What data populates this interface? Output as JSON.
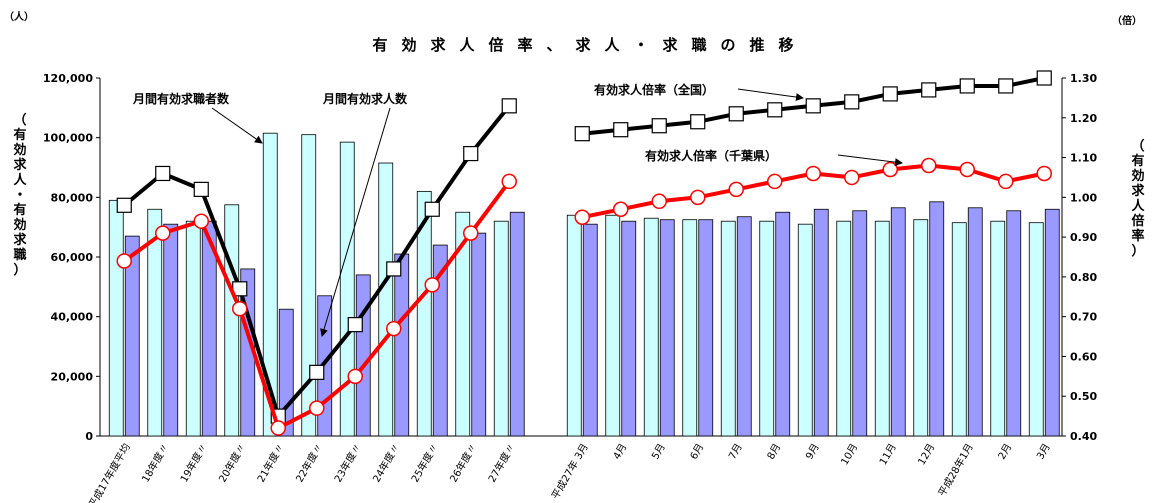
{
  "chart_data": {
    "type": "bar",
    "title": "有効求人倍率、求人・求職の推移",
    "left_unit": "（人）",
    "right_unit": "（倍）",
    "left_axis_label": "（有効求人・有効求職）",
    "right_axis_label": "（有効求人倍率）",
    "left_ylim": [
      0,
      120000
    ],
    "right_ylim": [
      0.4,
      1.3
    ],
    "left_ticks": [
      "0",
      "20,000",
      "40,000",
      "60,000",
      "80,000",
      "100,000",
      "120,000"
    ],
    "right_ticks": [
      "0.40",
      "0.50",
      "0.60",
      "0.70",
      "0.80",
      "0.90",
      "1.00",
      "1.10",
      "1.20",
      "1.30"
    ],
    "categories_group1": [
      "平成17年度平均",
      "18年度〃",
      "19年度〃",
      "20年度〃",
      "21年度〃",
      "22年度〃",
      "23年度〃",
      "24年度〃",
      "25年度〃",
      "26年度〃",
      "27年度〃"
    ],
    "categories_group2": [
      "平成27年 3月",
      "4月",
      "5月",
      "6月",
      "7月",
      "8月",
      "9月",
      "10月",
      "11月",
      "12月",
      "平成28年1月",
      "2月",
      "3月"
    ],
    "series": [
      {
        "name": "月間有効求職者数",
        "kind": "bar",
        "color": "#ccffff",
        "group1": [
          79000,
          76000,
          72000,
          77500,
          101500,
          101000,
          98500,
          91500,
          82000,
          75000,
          72000
        ],
        "group2": [
          74000,
          74000,
          73000,
          72500,
          72000,
          72000,
          71000,
          72000,
          72000,
          72500,
          71500,
          72000,
          71500
        ]
      },
      {
        "name": "月間有効求人数",
        "kind": "bar",
        "color": "#9999ff",
        "group1": [
          67000,
          71000,
          72000,
          56000,
          42500,
          47000,
          54000,
          61000,
          64000,
          68000,
          75000
        ],
        "group2": [
          71000,
          72000,
          72500,
          72500,
          73500,
          75000,
          76000,
          75500,
          76500,
          78500,
          76500,
          75500,
          76000
        ]
      },
      {
        "name": "有効求人倍率（全国）",
        "kind": "line",
        "color": "#000000",
        "group1": [
          0.98,
          1.06,
          1.02,
          0.77,
          0.45,
          0.56,
          0.68,
          0.82,
          0.97,
          1.11,
          1.23
        ],
        "group2": [
          1.16,
          1.17,
          1.18,
          1.19,
          1.21,
          1.22,
          1.23,
          1.24,
          1.26,
          1.27,
          1.28,
          1.28,
          1.3
        ]
      },
      {
        "name": "有効求人倍率（千葉県）",
        "kind": "line",
        "color": "#ff0000",
        "group1": [
          0.84,
          0.91,
          0.94,
          0.72,
          0.42,
          0.47,
          0.55,
          0.67,
          0.78,
          0.91,
          1.04
        ],
        "group2": [
          0.95,
          0.97,
          0.99,
          1.0,
          1.02,
          1.04,
          1.06,
          1.05,
          1.07,
          1.08,
          1.07,
          1.04,
          1.06
        ]
      }
    ],
    "annotations": [
      "月間有効求職者数",
      "月間有効求人数",
      "有効求人倍率（全国）",
      "有効求人倍率（千葉県）"
    ],
    "legend": "annotations with arrows"
  }
}
